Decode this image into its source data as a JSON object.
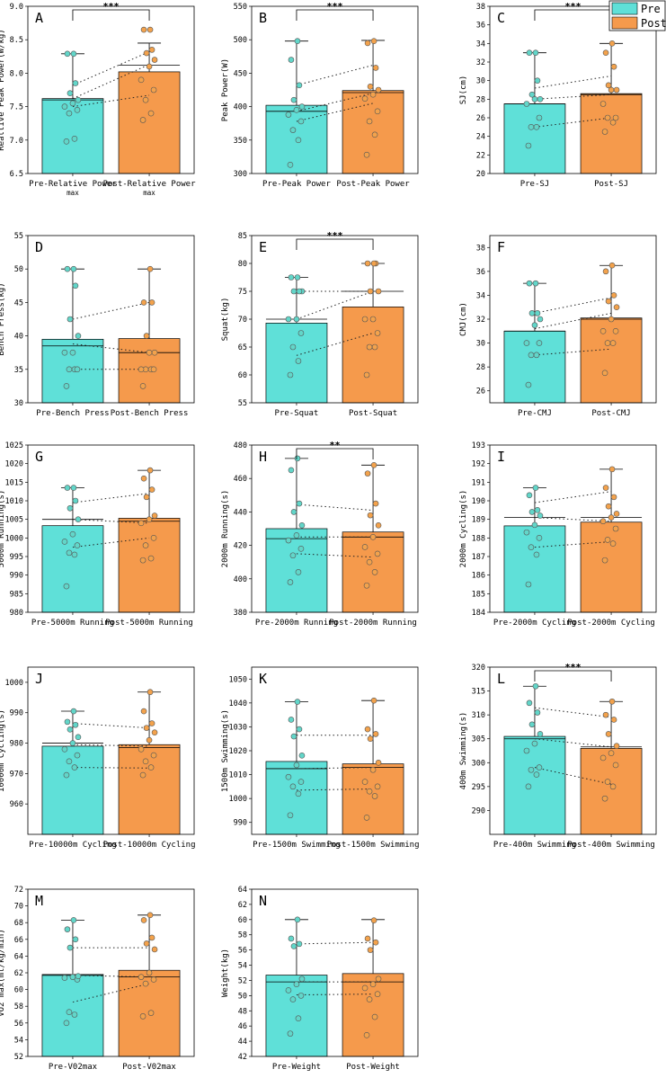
{
  "colors": {
    "pre": "#5fe0d8",
    "post": "#f59a4c",
    "pre_dot": "#62d6c9",
    "post_dot": "#f3a24c",
    "axis": "#000000"
  },
  "legend": {
    "items": [
      {
        "label": "Pre",
        "color": "#5fe0d8"
      },
      {
        "label": "Post",
        "color": "#f59a4c"
      }
    ]
  },
  "chart_data": [
    {
      "letter": "A",
      "type": "bar",
      "ylabel": "Realtive Peak Power(W/kg)",
      "categories": [
        "Pre-Relative Power\nmax",
        "Post-Relative Power\nmax"
      ],
      "ylim": [
        6.5,
        9.0
      ],
      "ticks": [
        6.5,
        7.0,
        7.5,
        8.0,
        8.5,
        9.0
      ],
      "means": [
        7.62,
        8.02
      ],
      "median": [
        7.6,
        8.12
      ],
      "error": [
        8.29,
        8.45
      ],
      "sig": "***",
      "pre": [
        6.98,
        7.02,
        7.4,
        7.45,
        7.5,
        7.55,
        7.6,
        7.7,
        7.85,
        8.29,
        8.29
      ],
      "post": [
        7.3,
        7.4,
        7.6,
        7.75,
        7.9,
        8.1,
        8.2,
        8.3,
        8.35,
        8.65,
        8.65
      ],
      "pairs": [
        [
          7.5,
          7.67
        ],
        [
          7.62,
          8.13
        ],
        [
          7.82,
          8.32
        ]
      ]
    },
    {
      "letter": "B",
      "type": "bar",
      "ylabel": "Peak Power(W)",
      "categories": [
        "Pre-Peak Power",
        "Post-Peak Power"
      ],
      "ylim": [
        300,
        550
      ],
      "ticks": [
        300,
        350,
        400,
        450,
        500,
        550
      ],
      "means": [
        402,
        424
      ],
      "median": [
        393,
        421
      ],
      "error": [
        498,
        499
      ],
      "sig": "***",
      "pre": [
        313,
        350,
        365,
        378,
        388,
        395,
        400,
        410,
        432,
        470,
        498
      ],
      "post": [
        328,
        358,
        378,
        393,
        412,
        418,
        425,
        430,
        458,
        495,
        498
      ],
      "pairs": [
        [
          378,
          405
        ],
        [
          393,
          420
        ],
        [
          432,
          462
        ]
      ]
    },
    {
      "letter": "C",
      "type": "bar",
      "ylabel": "SJ(cm)",
      "categories": [
        "Pre-SJ",
        "Post-SJ"
      ],
      "ylim": [
        20,
        38
      ],
      "ticks": [
        20,
        22,
        24,
        26,
        28,
        30,
        32,
        34,
        36,
        38
      ],
      "means": [
        27.5,
        28.6
      ],
      "median": [
        27.5,
        28.5
      ],
      "error": [
        33.0,
        34.0
      ],
      "sig": "***",
      "pre": [
        23.0,
        25.0,
        25.0,
        26.0,
        27.5,
        28.0,
        28.0,
        28.5,
        30.0,
        33.0,
        33.0
      ],
      "post": [
        24.5,
        25.5,
        26.0,
        26.0,
        27.5,
        29.0,
        29.0,
        29.5,
        31.5,
        33.0,
        34.0
      ],
      "pairs": [
        [
          25.0,
          26.0
        ],
        [
          28.0,
          28.5
        ],
        [
          29.2,
          30.5
        ]
      ]
    },
    {
      "letter": "D",
      "type": "bar",
      "ylabel": "Bench Press(kg)",
      "categories": [
        "Pre-Bench Press",
        "Post-Bench Press"
      ],
      "ylim": [
        30,
        55
      ],
      "ticks": [
        30,
        35,
        40,
        45,
        50,
        55
      ],
      "means": [
        39.5,
        39.6
      ],
      "median": [
        38.5,
        37.5
      ],
      "error": [
        50,
        50
      ],
      "sig": "",
      "pre": [
        32.5,
        35,
        35,
        35,
        37.5,
        37.5,
        40,
        42.5,
        47.5,
        50,
        50
      ],
      "post": [
        32.5,
        35,
        35,
        35,
        35,
        37.5,
        37.5,
        40,
        45,
        45,
        50
      ],
      "pairs": [
        [
          35,
          35
        ],
        [
          38.8,
          37.5
        ],
        [
          42.5,
          45
        ]
      ]
    },
    {
      "letter": "E",
      "type": "bar",
      "ylabel": "Squat(kg)",
      "categories": [
        "Pre-Squat",
        "Post-Squat"
      ],
      "ylim": [
        55,
        85
      ],
      "ticks": [
        55,
        60,
        65,
        70,
        75,
        80,
        85
      ],
      "means": [
        69.3,
        72.2
      ],
      "median": [
        70,
        75
      ],
      "error": [
        77.5,
        80
      ],
      "sig": "***",
      "pre": [
        60,
        62.5,
        65,
        67.5,
        70,
        70,
        75,
        75,
        75,
        77.5,
        77.5
      ],
      "post": [
        60,
        65,
        65,
        67.5,
        70,
        70,
        75,
        75,
        80,
        80,
        80
      ],
      "pairs": [
        [
          63.5,
          67.5
        ],
        [
          70,
          75
        ],
        [
          75,
          75
        ]
      ]
    },
    {
      "letter": "F",
      "type": "bar",
      "ylabel": "CMJ(cm)",
      "categories": [
        "Pre-CMJ",
        "Post-CMJ"
      ],
      "ylim": [
        25,
        39
      ],
      "ticks": [
        26,
        28,
        30,
        32,
        34,
        36,
        38
      ],
      "means": [
        31.0,
        32.1
      ],
      "median": [
        31.0,
        32.0
      ],
      "error": [
        35.0,
        36.5
      ],
      "sig": "",
      "pre": [
        26.5,
        29.0,
        29.0,
        30.0,
        30.0,
        31.5,
        32.0,
        32.5,
        32.5,
        35.0,
        35.0
      ],
      "post": [
        27.5,
        30.0,
        30.0,
        31.0,
        31.0,
        32.0,
        33.0,
        33.5,
        34.0,
        36.0,
        36.5
      ],
      "pairs": [
        [
          29.0,
          29.5
        ],
        [
          31.2,
          32.5
        ],
        [
          32.5,
          33.8
        ]
      ]
    },
    {
      "letter": "G",
      "type": "bar",
      "ylabel": "5000m Running(s)",
      "categories": [
        "Pre-5000m Running",
        "Post-5000m Running"
      ],
      "ylim": [
        980,
        1025
      ],
      "ticks": [
        980,
        985,
        990,
        995,
        1000,
        1005,
        1010,
        1015,
        1020,
        1025
      ],
      "means": [
        1003.3,
        1005.3
      ],
      "median": [
        1005,
        1004.5
      ],
      "error": [
        1013.5,
        1018.2
      ],
      "sig": "",
      "pre": [
        987,
        995.5,
        996,
        998,
        999,
        1001,
        1005,
        1008,
        1010,
        1013.5,
        1013.5
      ],
      "post": [
        994,
        994.5,
        998,
        1000,
        1004,
        1005,
        1006,
        1011,
        1013,
        1016,
        1018.2
      ],
      "pairs": [
        [
          997.5,
          1000
        ],
        [
          1005,
          1004
        ],
        [
          1009.5,
          1012
        ]
      ]
    },
    {
      "letter": "H",
      "type": "bar",
      "ylabel": "2000m Running(s)",
      "categories": [
        "Pre-2000m Running",
        "Post-2000m Running"
      ],
      "ylim": [
        380,
        480
      ],
      "ticks": [
        380,
        400,
        420,
        440,
        460,
        480
      ],
      "means": [
        430,
        428
      ],
      "median": [
        424,
        425
      ],
      "error": [
        472,
        468
      ],
      "sig": "**",
      "pre": [
        398,
        404,
        414,
        418,
        423,
        426,
        432,
        440,
        445,
        465,
        472
      ],
      "post": [
        396,
        404,
        410,
        415,
        419,
        425,
        432,
        438,
        445,
        463,
        468
      ],
      "pairs": [
        [
          415,
          413
        ],
        [
          425,
          425
        ],
        [
          444.5,
          441
        ]
      ]
    },
    {
      "letter": "I",
      "type": "bar",
      "ylabel": "2000m Cycling(s)",
      "categories": [
        "Pre-2000m Cycling",
        "Post-2000m Cycling"
      ],
      "ylim": [
        184,
        193
      ],
      "ticks": [
        184,
        185,
        186,
        187,
        188,
        189,
        190,
        191,
        192,
        193
      ],
      "means": [
        188.65,
        188.85
      ],
      "median": [
        189.1,
        189.1
      ],
      "error": [
        190.7,
        191.7
      ],
      "sig": "",
      "pre": [
        185.5,
        187.1,
        187.5,
        188.0,
        188.3,
        188.7,
        189.2,
        189.4,
        189.5,
        190.3,
        190.7
      ],
      "post": [
        186.8,
        187.7,
        187.9,
        188.5,
        188.9,
        189.1,
        189.3,
        189.7,
        190.2,
        190.7,
        191.7
      ],
      "pairs": [
        [
          187.5,
          187.8
        ],
        [
          189.1,
          188.9
        ],
        [
          189.9,
          190.5
        ]
      ]
    },
    {
      "letter": "J",
      "type": "bar",
      "ylabel": "10000m Cycling(s)",
      "categories": [
        "Pre-10000m Cycling",
        "Post-10000m Cycling"
      ],
      "ylim": [
        950,
        1005
      ],
      "ticks": [
        960,
        970,
        980,
        990,
        1000
      ],
      "means": [
        979,
        979.5
      ],
      "median": [
        980,
        978.5
      ],
      "error": [
        990.5,
        996.8
      ],
      "sig": "",
      "pre": [
        969.5,
        972,
        974,
        976,
        978,
        980,
        982,
        984.5,
        986,
        987,
        990.5
      ],
      "post": [
        969.5,
        972,
        974,
        976,
        978,
        981,
        983.5,
        985,
        986.5,
        990.5,
        996.8
      ],
      "pairs": [
        [
          972,
          971.8
        ],
        [
          979.5,
          979
        ],
        [
          986.5,
          985
        ]
      ]
    },
    {
      "letter": "K",
      "type": "bar",
      "ylabel": "1500m Swimming(s)",
      "categories": [
        "Pre-1500m Swimming",
        "Post-1500m Swimming"
      ],
      "ylim": [
        985,
        1055
      ],
      "ticks": [
        990,
        1000,
        1010,
        1020,
        1030,
        1040,
        1050
      ],
      "means": [
        1015.5,
        1014.5
      ],
      "median": [
        1012.5,
        1013
      ],
      "error": [
        1040.5,
        1041
      ],
      "sig": "",
      "pre": [
        993,
        1002,
        1005,
        1007,
        1009,
        1014,
        1018,
        1026,
        1029,
        1033,
        1040.5
      ],
      "post": [
        992,
        1001,
        1003,
        1005,
        1007,
        1012,
        1015,
        1025,
        1027,
        1029,
        1041
      ],
      "pairs": [
        [
          1003.5,
          1004
        ],
        [
          1012.5,
          1013
        ],
        [
          1026.5,
          1026.5
        ]
      ]
    },
    {
      "letter": "L",
      "type": "bar",
      "ylabel": "400m Swimming(s)",
      "categories": [
        "Pre-400m Swimming",
        "Post-400m Swimming"
      ],
      "ylim": [
        285,
        320
      ],
      "ticks": [
        290,
        295,
        300,
        305,
        310,
        315,
        320
      ],
      "means": [
        305.5,
        303.0
      ],
      "median": [
        305,
        303.3
      ],
      "error": [
        316.0,
        312.8
      ],
      "sig": "***",
      "pre": [
        295,
        297.5,
        298.5,
        299,
        302.5,
        304,
        306,
        308,
        310.5,
        312.5,
        316
      ],
      "post": [
        292.5,
        295,
        296,
        299.5,
        301,
        302,
        303.5,
        306,
        309,
        310,
        312.8
      ],
      "pairs": [
        [
          299,
          295.5
        ],
        [
          305,
          303.3
        ],
        [
          311.5,
          309.5
        ]
      ]
    },
    {
      "letter": "M",
      "type": "bar",
      "ylabel": "VO2 max(ml/kg/min)",
      "categories": [
        "Pre-V02max",
        "Post-V02max"
      ],
      "ylim": [
        52,
        72
      ],
      "ticks": [
        52,
        54,
        56,
        58,
        60,
        62,
        64,
        66,
        68,
        70,
        72
      ],
      "means": [
        61.8,
        62.3
      ],
      "median": [
        61.7,
        61.5
      ],
      "error": [
        68.3,
        68.9
      ],
      "sig": "",
      "pre": [
        56,
        57,
        57.3,
        61.2,
        61.4,
        61.5,
        61.6,
        65,
        66,
        67.2,
        68.3
      ],
      "post": [
        56.8,
        57.2,
        60.7,
        61.2,
        61.5,
        62,
        64.8,
        65.5,
        66.2,
        68.3,
        68.9
      ],
      "pairs": [
        [
          58.5,
          60.7
        ],
        [
          61.7,
          61.5
        ],
        [
          65,
          65
        ]
      ]
    },
    {
      "letter": "N",
      "type": "bar",
      "ylabel": "Weight(kg)",
      "categories": [
        "Pre-Weight",
        "Post-Weight"
      ],
      "ylim": [
        42,
        64
      ],
      "ticks": [
        42,
        44,
        46,
        48,
        50,
        52,
        54,
        56,
        58,
        60,
        62,
        64
      ],
      "means": [
        52.7,
        52.9
      ],
      "median": [
        51.8,
        51.8
      ],
      "error": [
        60,
        60
      ],
      "sig": "",
      "pre": [
        45,
        47,
        49.5,
        50,
        50.7,
        51.5,
        52.2,
        56.5,
        56.8,
        57.5,
        60
      ],
      "post": [
        44.8,
        47.2,
        49.5,
        50.2,
        51,
        51.5,
        52.2,
        56,
        57,
        57.5,
        59.9
      ],
      "pairs": [
        [
          50.1,
          50.2
        ],
        [
          51.8,
          51.8
        ],
        [
          56.8,
          57
        ]
      ]
    }
  ]
}
